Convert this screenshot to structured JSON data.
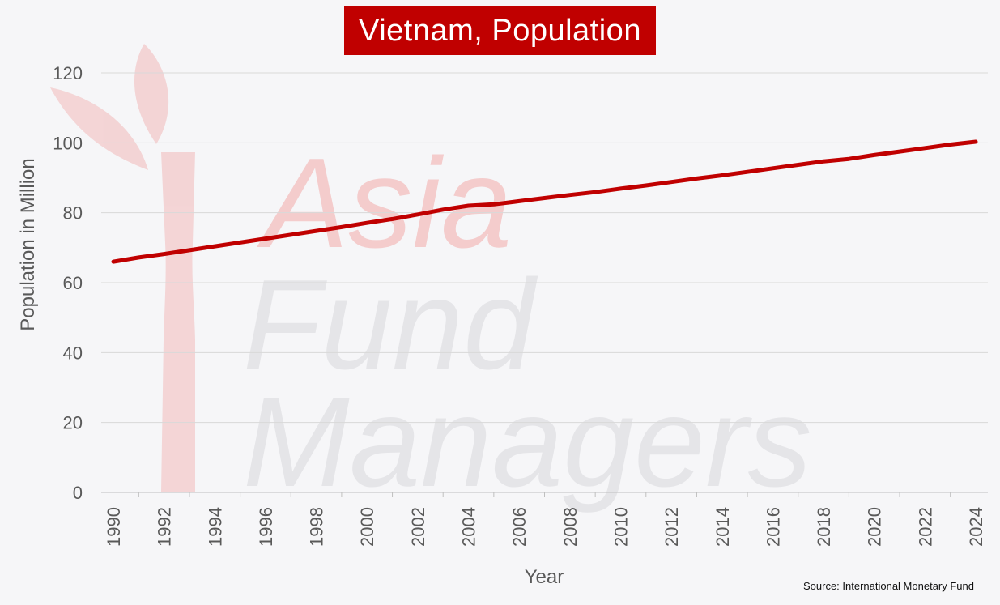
{
  "chart_data": {
    "type": "line",
    "title": "Vietnam, Population",
    "xlabel": "Year",
    "ylabel": "Population in Million",
    "ylim": [
      0,
      120
    ],
    "yticks": [
      0,
      20,
      40,
      60,
      80,
      100,
      120
    ],
    "xticks": [
      "1990",
      "1992",
      "1994",
      "1996",
      "1998",
      "2000",
      "2002",
      "2004",
      "2006",
      "2008",
      "2010",
      "2012",
      "2014",
      "2016",
      "2018",
      "2020",
      "2022",
      "2024"
    ],
    "grid": "horizontal",
    "x": [
      1990,
      1991,
      1992,
      1993,
      1994,
      1995,
      1996,
      1997,
      1998,
      1999,
      2000,
      2001,
      2002,
      2003,
      2004,
      2005,
      2006,
      2007,
      2008,
      2009,
      2010,
      2011,
      2012,
      2013,
      2014,
      2015,
      2016,
      2017,
      2018,
      2019,
      2020,
      2021,
      2022,
      2023,
      2024
    ],
    "series": [
      {
        "color": "#c00000",
        "values": [
          66.0,
          67.2,
          68.2,
          69.3,
          70.4,
          71.5,
          72.6,
          73.7,
          74.8,
          75.9,
          77.1,
          78.2,
          79.5,
          80.9,
          82.0,
          82.4,
          83.3,
          84.2,
          85.1,
          85.9,
          86.9,
          87.8,
          88.8,
          89.8,
          90.7,
          91.7,
          92.7,
          93.7,
          94.7,
          95.4,
          96.5,
          97.5,
          98.5,
          99.5,
          100.3
        ]
      }
    ],
    "source": "Source: International Monetary Fund",
    "watermark": "Asia Fund Managers"
  }
}
